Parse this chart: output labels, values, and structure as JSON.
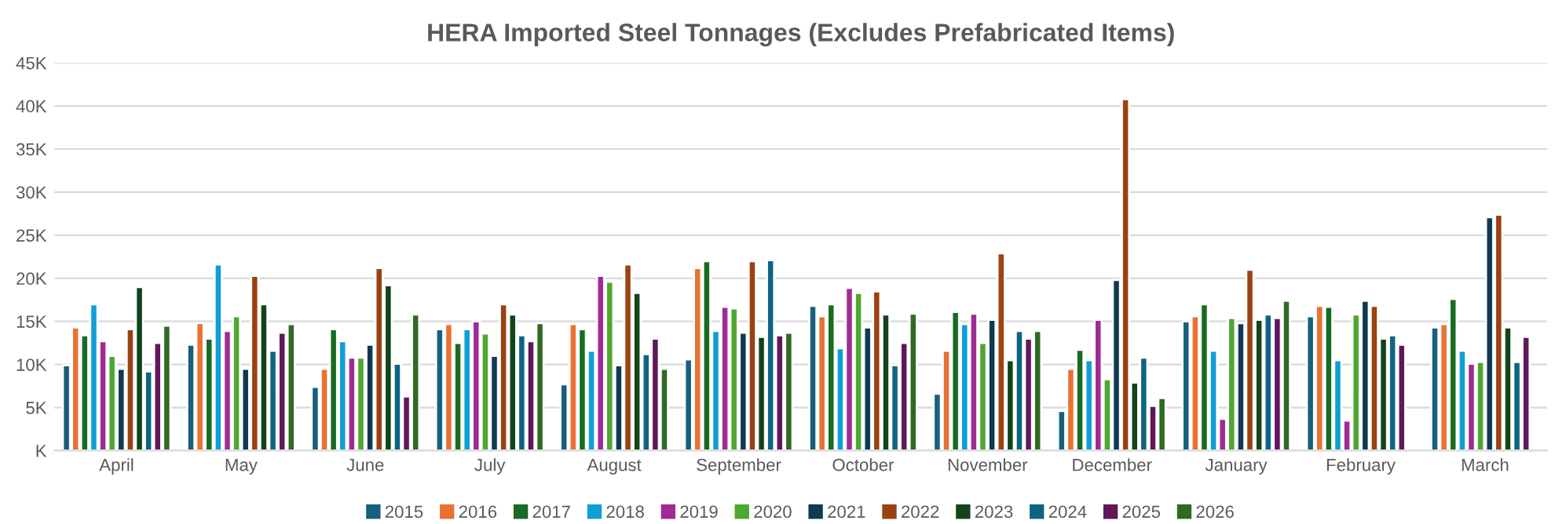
{
  "chart_data": {
    "type": "bar",
    "title": "HERA Imported Steel Tonnages (Excludes Prefabricated Items)",
    "categories": [
      "April",
      "May",
      "June",
      "July",
      "August",
      "September",
      "October",
      "November",
      "December",
      "January",
      "February",
      "March"
    ],
    "series": [
      {
        "name": "2015",
        "color": "#17607d",
        "values": [
          9.9,
          12.3,
          7.4,
          14.1,
          7.7,
          10.6,
          16.8,
          6.6,
          4.6,
          15.0,
          15.6,
          14.3
        ]
      },
      {
        "name": "2016",
        "color": "#e97132",
        "values": [
          14.3,
          14.8,
          9.5,
          14.7,
          14.7,
          21.2,
          15.6,
          11.6,
          9.5,
          15.6,
          16.8,
          14.7
        ]
      },
      {
        "name": "2017",
        "color": "#196b24",
        "values": [
          13.4,
          13.0,
          14.1,
          12.5,
          14.1,
          22.0,
          17.0,
          16.1,
          11.7,
          17.0,
          16.7,
          17.6
        ]
      },
      {
        "name": "2018",
        "color": "#0f9ed5",
        "values": [
          17.0,
          21.6,
          12.7,
          14.1,
          11.6,
          13.9,
          11.9,
          14.7,
          10.5,
          11.6,
          10.5,
          11.6
        ]
      },
      {
        "name": "2019",
        "color": "#a02b93",
        "values": [
          12.7,
          13.9,
          10.8,
          15.0,
          20.3,
          16.7,
          18.9,
          15.9,
          15.2,
          3.7,
          3.5,
          10.1
        ]
      },
      {
        "name": "2020",
        "color": "#4ea72e",
        "values": [
          11.0,
          15.6,
          10.8,
          13.6,
          19.6,
          16.5,
          18.3,
          12.5,
          8.3,
          15.4,
          15.8,
          10.3
        ]
      },
      {
        "name": "2021",
        "color": "#0e3a52",
        "values": [
          9.5,
          9.5,
          12.3,
          11.0,
          9.9,
          13.7,
          14.3,
          15.2,
          19.8,
          14.8,
          17.4,
          27.1
        ]
      },
      {
        "name": "2022",
        "color": "#9b4112",
        "values": [
          14.1,
          20.3,
          21.2,
          17.0,
          21.6,
          22.0,
          18.5,
          22.9,
          40.8,
          21.0,
          16.8,
          27.4
        ]
      },
      {
        "name": "2023",
        "color": "#12441c",
        "values": [
          19.0,
          17.0,
          19.2,
          15.8,
          18.3,
          13.2,
          15.8,
          10.5,
          7.9,
          15.2,
          13.0,
          14.3
        ]
      },
      {
        "name": "2024",
        "color": "#0e6483",
        "values": [
          9.2,
          11.6,
          10.1,
          13.4,
          11.2,
          22.1,
          9.9,
          13.9,
          10.8,
          15.8,
          13.4,
          10.3
        ]
      },
      {
        "name": "2025",
        "color": "#60185a",
        "values": [
          12.5,
          13.7,
          6.3,
          12.7,
          13.0,
          13.4,
          12.5,
          13.0,
          5.2,
          15.4,
          12.3,
          13.2
        ]
      },
      {
        "name": "2026",
        "color": "#2f6a22",
        "values": [
          14.5,
          14.7,
          15.8,
          14.8,
          9.5,
          13.7,
          15.9,
          13.9,
          6.1,
          17.4,
          null,
          null
        ]
      }
    ],
    "ylim": [
      0,
      45
    ],
    "yticks": [
      {
        "value": 0,
        "label": "K"
      },
      {
        "value": 5,
        "label": "5K"
      },
      {
        "value": 10,
        "label": "10K"
      },
      {
        "value": 15,
        "label": "15K"
      },
      {
        "value": 20,
        "label": "20K"
      },
      {
        "value": 25,
        "label": "25K"
      },
      {
        "value": 30,
        "label": "30K"
      },
      {
        "value": 35,
        "label": "35K"
      },
      {
        "value": 40,
        "label": "40K"
      },
      {
        "value": 45,
        "label": "45K"
      }
    ],
    "grid": "y",
    "legend": "bottom"
  }
}
